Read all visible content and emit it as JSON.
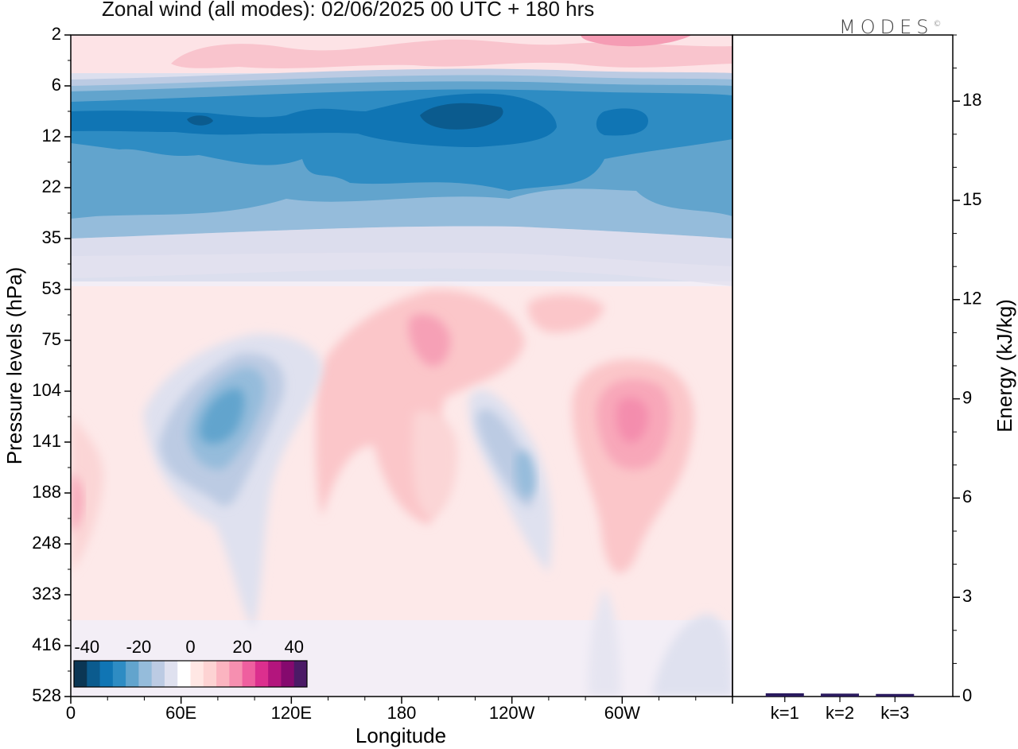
{
  "figure": {
    "title": "Zonal wind (all modes):  02/06/2025  00 UTC  + 180 hrs",
    "logo_text": "MODES",
    "logo_mark": "©"
  },
  "chart_data": [
    {
      "type": "heatmap",
      "title": "Zonal wind (all modes):  02/06/2025  00 UTC  + 180 hrs",
      "xlabel": "Longitude",
      "ylabel": "Pressure levels (hPa)",
      "x_ticks": [
        "0",
        "60E",
        "120E",
        "180",
        "120W",
        "60W"
      ],
      "y_ticks": [
        "2",
        "6",
        "12",
        "22",
        "35",
        "53",
        "75",
        "104",
        "141",
        "188",
        "248",
        "323",
        "416",
        "528"
      ],
      "colorbar": {
        "tick_labels": [
          "-40",
          "-20",
          "0",
          "20",
          "40"
        ],
        "range": [
          -45,
          45
        ],
        "step": 5,
        "colors": [
          "#0b3654",
          "#0b5b8e",
          "#1075b4",
          "#2e8cc3",
          "#62a4cd",
          "#95bcdb",
          "#bccbe3",
          "#dfe1ef",
          "#ffffff",
          "#ffe7e4",
          "#fdd3d3",
          "#fbb4c0",
          "#f68fb0",
          "#ef5f9f",
          "#dc2f8e",
          "#b3157d",
          "#85096e",
          "#4b1a66"
        ]
      },
      "regions": [
        {
          "name": "upper strong easterly core",
          "lat_levels": "8-12 hPa",
          "value": -35
        },
        {
          "name": "easterly band",
          "levels": "6-30 hPa",
          "value": -25
        },
        {
          "name": "stratospheric westerlies",
          "levels": "2-5 hPa",
          "value": 10
        },
        {
          "name": "easterly anomaly near 80E",
          "levels": "90-200 hPa",
          "value": -20
        },
        {
          "name": "westerly maximum near 65W",
          "levels": "104-188 hPa",
          "value": 20
        },
        {
          "name": "westerly near 160W",
          "levels": "60-100 hPa",
          "value": 15
        }
      ]
    },
    {
      "type": "bar",
      "ylabel": "Energy (kJ/kg)",
      "categories": [
        "k=1",
        "k=2",
        "k=3"
      ],
      "values": [
        0.05,
        0.04,
        0.03
      ],
      "ylim": [
        0,
        20
      ],
      "y_ticks": [
        "0",
        "3",
        "6",
        "9",
        "12",
        "15",
        "18"
      ]
    }
  ]
}
